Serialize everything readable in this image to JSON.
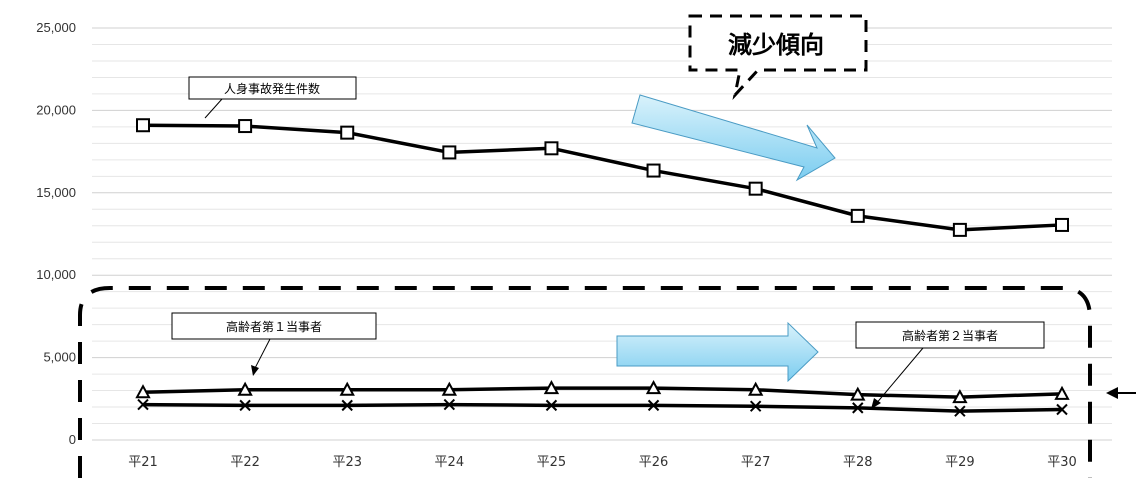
{
  "chart_data": {
    "type": "line",
    "categories": [
      "平21",
      "平22",
      "平23",
      "平24",
      "平25",
      "平26",
      "平27",
      "平28",
      "平29",
      "平30"
    ],
    "ylim": [
      0,
      25000
    ],
    "yticks": [
      "0",
      "5,000",
      "10,000",
      "15,000",
      "20,000",
      "25,000"
    ],
    "grid": true,
    "series": [
      {
        "name": "人身事故発生件数",
        "marker": "square",
        "values": [
          19100,
          19050,
          18650,
          17450,
          17700,
          16350,
          15250,
          13600,
          12750,
          13050
        ]
      },
      {
        "name": "高齢者第１当事者",
        "marker": "triangle",
        "values": [
          2900,
          3050,
          3050,
          3050,
          3150,
          3150,
          3050,
          2750,
          2600,
          2800
        ]
      },
      {
        "name": "高齢者第２当事者",
        "marker": "x",
        "values": [
          2150,
          2100,
          2100,
          2150,
          2100,
          2100,
          2050,
          1950,
          1750,
          1850
        ]
      }
    ],
    "annotations": {
      "trend": "減少傾向"
    }
  },
  "colors": {
    "line": "#000000",
    "grid": "#e6e6e6",
    "arrow_top": "#d9f2fb",
    "arrow_bottom": "#7ccdf0"
  }
}
